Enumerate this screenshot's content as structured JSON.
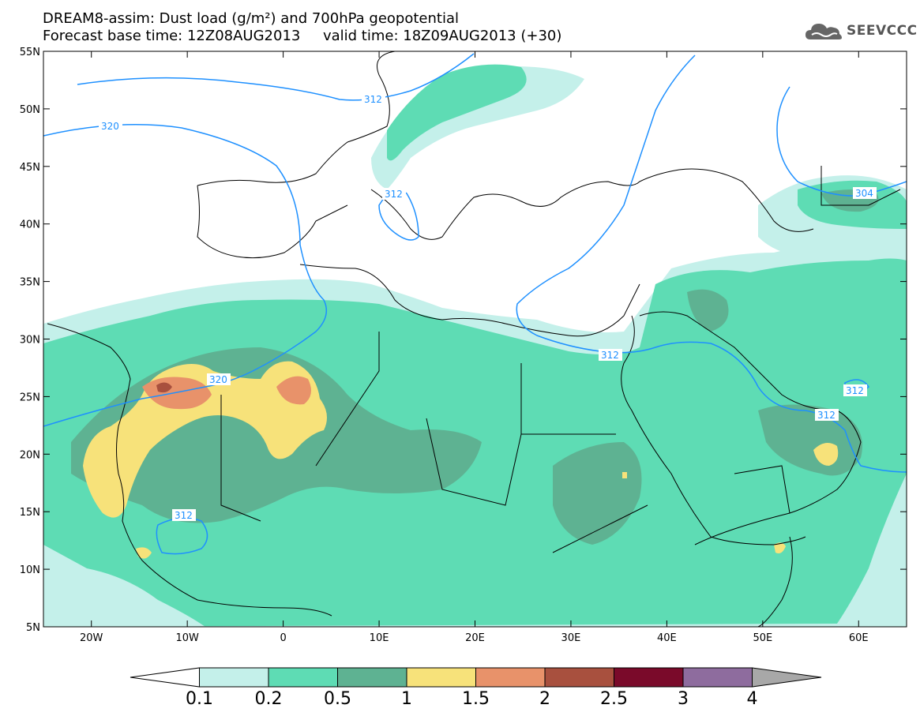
{
  "title": {
    "line1": "DREAM8-assim: Dust load (g/m²) and 700hPa geopotential",
    "line2": "Forecast base time: 12Z08AUG2013     valid time: 18Z09AUG2013 (+30)"
  },
  "logo": {
    "text": "SEEVCCC",
    "icon": "cloud-icon"
  },
  "map_data": {
    "type": "contour-map",
    "lon_range": [
      -25,
      65
    ],
    "lat_range": [
      5,
      55
    ],
    "x_ticks": [
      "20W",
      "10W",
      "0",
      "10E",
      "20E",
      "30E",
      "40E",
      "50E",
      "60E"
    ],
    "y_ticks": [
      "55N",
      "50N",
      "45N",
      "40N",
      "35N",
      "30N",
      "25N",
      "20N",
      "15N",
      "10N",
      "5N"
    ],
    "geopotential_labels": [
      "312",
      "320",
      "312",
      "304",
      "312",
      "320",
      "312",
      "312",
      "312"
    ],
    "colors": {
      "level_0_1_0_2": "#C4F0EA",
      "level_0_2_0_5": "#5EDCB4",
      "level_0_5_1": "#5EB292",
      "level_1_1_5": "#F7E27A",
      "level_1_5_2": "#E8926A",
      "level_2_2_5": "#A8503E",
      "contour": "#1E90FF"
    }
  },
  "colorbar": {
    "labels": [
      "0.1",
      "0.2",
      "0.5",
      "1",
      "1.5",
      "2",
      "2.5",
      "3",
      "4"
    ],
    "colors": [
      "#C4F0EA",
      "#5EDCB4",
      "#5EB292",
      "#F7E27A",
      "#E8926A",
      "#A8503E",
      "#7A0A2A",
      "#8E6C9E"
    ]
  }
}
